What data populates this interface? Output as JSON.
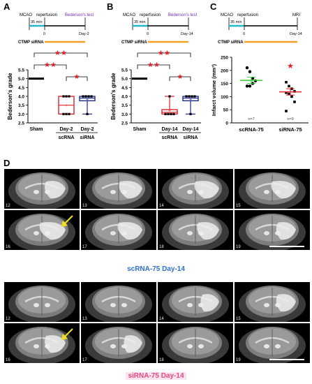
{
  "panels": {
    "A": {
      "letter": "A",
      "timeline": {
        "mcao": "MCAO",
        "reperfusion": "reperfusion",
        "test": "Bederson's test",
        "duration": "35 min",
        "zero": "0",
        "endday": "Day-2",
        "treatment": "CTMP siRNA"
      },
      "sig": {
        "big": "★★",
        "small": "★★",
        "single": "★"
      }
    },
    "B": {
      "letter": "B",
      "timeline": {
        "mcao": "MCAO",
        "reperfusion": "reperfusion",
        "test": "Bederson's test",
        "duration": "35 min",
        "zero": "0",
        "endday": "Day-14",
        "treatment": "CTMP siRNA"
      },
      "sig": {
        "big": "★★",
        "small": "★★",
        "single": "★"
      }
    },
    "C": {
      "letter": "C",
      "timeline": {
        "mcao": "MCAO",
        "reperfusion": "reperfusion",
        "test": "MRI",
        "duration": "35 min",
        "zero": "0",
        "endday": "Day-14",
        "treatment": "CTMP siRNA"
      },
      "sig": {
        "single": "★"
      },
      "n_labels": [
        "n=7",
        "n=9"
      ]
    },
    "D": {
      "letter": "D"
    }
  },
  "colors": {
    "sham": "#000000",
    "scrna": "#e0202a",
    "sirna": "#1f2a8f",
    "green": "#2ecc2e",
    "siRNA_pts": "#c0143c",
    "timeline_cyan": "#20b7c8",
    "timeline_orange": "#f4a024",
    "test_purple": "#6b2fb5",
    "caption_blue": "#2f6fd0",
    "caption_pink": "#e04a86"
  },
  "chart_data": [
    {
      "type": "box",
      "title": "",
      "ylabel": "Bederson's grade",
      "ylim": [
        2.5,
        5.5
      ],
      "yticks": [
        "2.5",
        "3.0",
        "3.5",
        "4.0",
        "4.5",
        "5.0",
        "5.5"
      ],
      "categories": [
        "Sham",
        "Day-2",
        "Day-2"
      ],
      "group_labels": [
        "",
        "scRNA",
        "siRNA"
      ],
      "boxes": [
        {
          "min": 5.0,
          "q1": 5.0,
          "median": 5.0,
          "q3": 5.0,
          "max": 5.0,
          "mean": 5.0
        },
        {
          "min": 3.0,
          "q1": 3.0,
          "median": 3.5,
          "q3": 4.0,
          "max": 4.0,
          "mean": 3.5
        },
        {
          "min": 3.0,
          "q1": 3.75,
          "median": 3.9,
          "q3": 4.0,
          "max": 4.0,
          "mean": 3.83
        }
      ],
      "points": [
        [],
        [
          3.0,
          3.0,
          3.0,
          4.0,
          4.0,
          4.0
        ],
        [
          3.0,
          4.0,
          4.0,
          4.0,
          4.0
        ]
      ]
    },
    {
      "type": "box",
      "title": "",
      "ylabel": "Bederson's grade",
      "ylim": [
        2.5,
        5.5
      ],
      "yticks": [
        "2.5",
        "3.0",
        "3.5",
        "4.0",
        "4.5",
        "5.0",
        "5.5"
      ],
      "categories": [
        "Sham",
        "Day-14",
        "Day-14"
      ],
      "group_labels": [
        "",
        "scRNA",
        "siRNA"
      ],
      "boxes": [
        {
          "min": 5.0,
          "q1": 5.0,
          "median": 5.0,
          "q3": 5.0,
          "max": 5.0,
          "mean": 5.0
        },
        {
          "min": 3.0,
          "q1": 3.0,
          "median": 3.1,
          "q3": 3.25,
          "max": 4.0,
          "mean": 3.2
        },
        {
          "min": 3.0,
          "q1": 3.75,
          "median": 3.9,
          "q3": 4.0,
          "max": 4.0,
          "mean": 3.85
        }
      ],
      "points": [
        [],
        [
          3.0,
          3.0,
          3.0,
          3.0,
          4.0
        ],
        [
          3.0,
          4.0,
          4.0,
          4.0,
          4.0
        ]
      ]
    },
    {
      "type": "scatter",
      "title": "",
      "ylabel": "Infarct volume (mm³)",
      "ylim": [
        0,
        250
      ],
      "yticks": [
        "0",
        "50",
        "100",
        "150",
        "200",
        "250"
      ],
      "categories": [
        "scRNA-75",
        "siRNA-75"
      ],
      "series": [
        {
          "values": [
            210,
            195,
            170,
            160,
            140,
            140,
            150
          ],
          "mean": 162
        },
        {
          "values": [
            155,
            140,
            130,
            120,
            115,
            110,
            100,
            80,
            45
          ],
          "mean": 118
        }
      ],
      "outlier_star": 218
    }
  ],
  "mri": {
    "top_slices": [
      "12",
      "13",
      "14",
      "15",
      "16",
      "17",
      "18",
      "19"
    ],
    "bottom_slices": [
      "12",
      "13",
      "14",
      "15",
      "16",
      "17",
      "18",
      "19"
    ],
    "top_caption": "scRNA-75 Day-14",
    "bottom_caption": "siRNA-75 Day-14"
  }
}
